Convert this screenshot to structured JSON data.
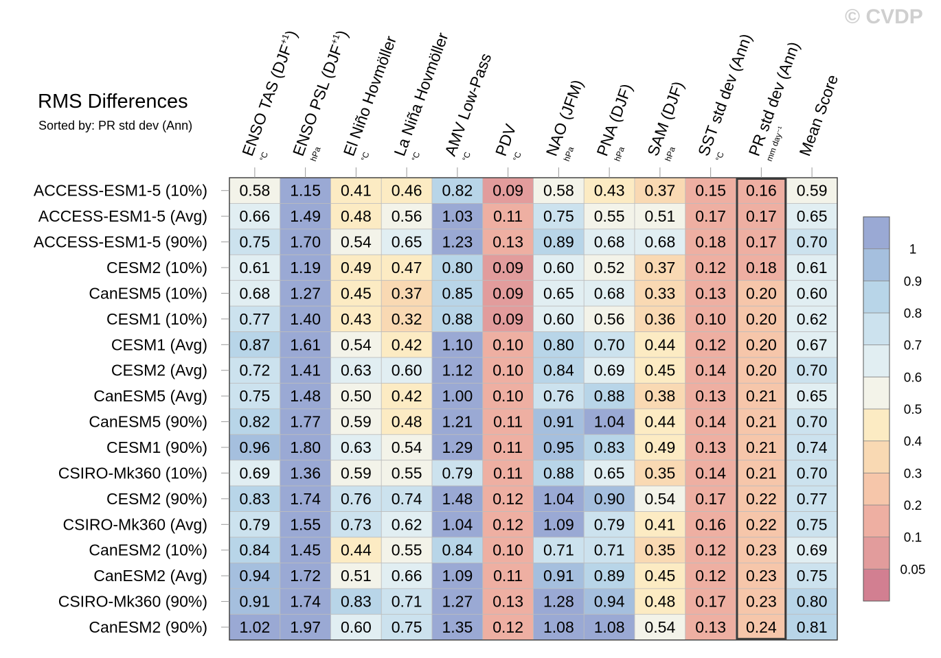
{
  "watermark": "© CVDP",
  "chart_data": {
    "type": "heatmap",
    "title": "RMS Differences",
    "subtitle": "Sorted by: PR std dev (Ann)",
    "sorted_by": "PR std dev (Ann)",
    "highlighted_column": "PR std dev (Ann)",
    "columns": [
      {
        "label": "ENSO TAS (DJF",
        "sup": "+1",
        "close": ")",
        "unit": "°C"
      },
      {
        "label": "ENSO PSL (DJF",
        "sup": "+1",
        "close": ")",
        "unit": "hPa"
      },
      {
        "label": "El Niño Hovmöller",
        "sup": "",
        "close": "",
        "unit": "°C"
      },
      {
        "label": "La Niña Hovmöller",
        "sup": "",
        "close": "",
        "unit": "°C"
      },
      {
        "label": "AMV Low-Pass",
        "sup": "",
        "close": "",
        "unit": "°C"
      },
      {
        "label": "PDV",
        "sup": "",
        "close": "",
        "unit": "°C"
      },
      {
        "label": "NAO (JFM)",
        "sup": "",
        "close": "",
        "unit": "hPa"
      },
      {
        "label": "PNA (DJF)",
        "sup": "",
        "close": "",
        "unit": "hPa"
      },
      {
        "label": "SAM (DJF)",
        "sup": "",
        "close": "",
        "unit": "hPa"
      },
      {
        "label": "SST std dev (Ann)",
        "sup": "",
        "close": "",
        "unit": "°C"
      },
      {
        "label": "PR std dev (Ann)",
        "sup": "",
        "close": "",
        "unit": "mm day⁻¹"
      },
      {
        "label": "Mean Score",
        "sup": "",
        "close": "",
        "unit": ""
      }
    ],
    "rows": [
      "ACCESS-ESM1-5 (10%)",
      "ACCESS-ESM1-5 (Avg)",
      "ACCESS-ESM1-5 (90%)",
      "CESM2 (10%)",
      "CanESM5 (10%)",
      "CESM1 (10%)",
      "CESM1 (Avg)",
      "CESM2 (Avg)",
      "CanESM5 (Avg)",
      "CanESM5 (90%)",
      "CESM1 (90%)",
      "CSIRO-Mk360 (10%)",
      "CESM2 (90%)",
      "CSIRO-Mk360 (Avg)",
      "CanESM2 (10%)",
      "CanESM2 (Avg)",
      "CSIRO-Mk360 (90%)",
      "CanESM2 (90%)"
    ],
    "values": [
      [
        "0.58",
        "1.15",
        "0.41",
        "0.46",
        "0.82",
        "0.09",
        "0.58",
        "0.43",
        "0.37",
        "0.15",
        "0.16",
        "0.59"
      ],
      [
        "0.66",
        "1.49",
        "0.48",
        "0.56",
        "1.03",
        "0.11",
        "0.75",
        "0.55",
        "0.51",
        "0.17",
        "0.17",
        "0.65"
      ],
      [
        "0.75",
        "1.70",
        "0.54",
        "0.65",
        "1.23",
        "0.13",
        "0.89",
        "0.68",
        "0.68",
        "0.18",
        "0.17",
        "0.70"
      ],
      [
        "0.61",
        "1.19",
        "0.49",
        "0.47",
        "0.80",
        "0.09",
        "0.60",
        "0.52",
        "0.37",
        "0.12",
        "0.18",
        "0.61"
      ],
      [
        "0.68",
        "1.27",
        "0.45",
        "0.37",
        "0.85",
        "0.09",
        "0.65",
        "0.68",
        "0.33",
        "0.13",
        "0.20",
        "0.60"
      ],
      [
        "0.77",
        "1.40",
        "0.43",
        "0.32",
        "0.88",
        "0.09",
        "0.60",
        "0.56",
        "0.36",
        "0.10",
        "0.20",
        "0.62"
      ],
      [
        "0.87",
        "1.61",
        "0.54",
        "0.42",
        "1.10",
        "0.10",
        "0.80",
        "0.70",
        "0.44",
        "0.12",
        "0.20",
        "0.67"
      ],
      [
        "0.72",
        "1.41",
        "0.63",
        "0.60",
        "1.12",
        "0.10",
        "0.84",
        "0.69",
        "0.45",
        "0.14",
        "0.20",
        "0.70"
      ],
      [
        "0.75",
        "1.48",
        "0.50",
        "0.42",
        "1.00",
        "0.10",
        "0.76",
        "0.88",
        "0.38",
        "0.13",
        "0.21",
        "0.65"
      ],
      [
        "0.82",
        "1.77",
        "0.59",
        "0.48",
        "1.21",
        "0.11",
        "0.91",
        "1.04",
        "0.44",
        "0.14",
        "0.21",
        "0.70"
      ],
      [
        "0.96",
        "1.80",
        "0.63",
        "0.54",
        "1.29",
        "0.11",
        "0.95",
        "0.83",
        "0.49",
        "0.13",
        "0.21",
        "0.74"
      ],
      [
        "0.69",
        "1.36",
        "0.59",
        "0.55",
        "0.79",
        "0.11",
        "0.88",
        "0.65",
        "0.35",
        "0.14",
        "0.21",
        "0.70"
      ],
      [
        "0.83",
        "1.74",
        "0.76",
        "0.74",
        "1.48",
        "0.12",
        "1.04",
        "0.90",
        "0.54",
        "0.17",
        "0.22",
        "0.77"
      ],
      [
        "0.79",
        "1.55",
        "0.73",
        "0.62",
        "1.04",
        "0.12",
        "1.09",
        "0.79",
        "0.41",
        "0.16",
        "0.22",
        "0.75"
      ],
      [
        "0.84",
        "1.45",
        "0.44",
        "0.55",
        "0.84",
        "0.10",
        "0.71",
        "0.71",
        "0.35",
        "0.12",
        "0.23",
        "0.69"
      ],
      [
        "0.94",
        "1.72",
        "0.51",
        "0.66",
        "1.09",
        "0.11",
        "0.91",
        "0.89",
        "0.45",
        "0.12",
        "0.23",
        "0.75"
      ],
      [
        "0.91",
        "1.74",
        "0.83",
        "0.71",
        "1.27",
        "0.13",
        "1.28",
        "0.94",
        "0.48",
        "0.17",
        "0.23",
        "0.80"
      ],
      [
        "1.02",
        "1.97",
        "0.60",
        "0.75",
        "1.35",
        "0.12",
        "1.08",
        "1.08",
        "0.54",
        "0.13",
        "0.24",
        "0.81"
      ]
    ],
    "colorbar": {
      "levels": [
        "0.05",
        "0.1",
        "0.2",
        "0.3",
        "0.4",
        "0.5",
        "0.6",
        "0.7",
        "0.8",
        "0.9",
        "1"
      ],
      "thresholds": [
        0.05,
        0.1,
        0.2,
        0.3,
        0.4,
        0.5,
        0.6,
        0.7,
        0.8,
        0.9,
        1.0
      ],
      "colors": [
        "#d27f91",
        "#e29c9c",
        "#eeafa2",
        "#f6c6aa",
        "#f9d9b3",
        "#fcebc3",
        "#f3f3e9",
        "#e1eef2",
        "#cce2ee",
        "#b8d5e8",
        "#a5bfde",
        "#9aa9d4"
      ]
    }
  }
}
